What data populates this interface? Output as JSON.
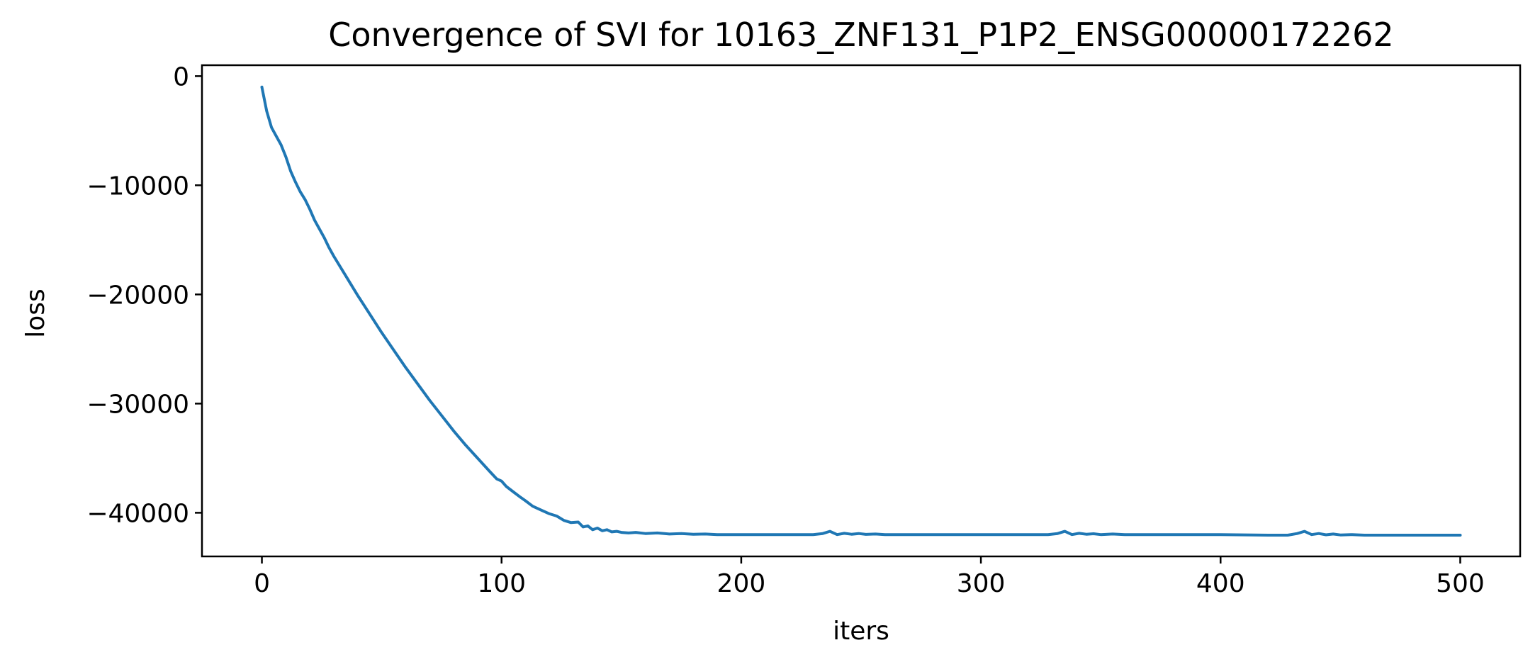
{
  "chart_data": {
    "type": "line",
    "title": "Convergence of SVI for 10163_ZNF131_P1P2_ENSG00000172262",
    "xlabel": "iters",
    "ylabel": "loss",
    "xlim": [
      -25,
      525
    ],
    "ylim": [
      -44000,
      1000
    ],
    "xticks": [
      0,
      100,
      200,
      300,
      400,
      500
    ],
    "xtick_labels": [
      "0",
      "100",
      "200",
      "300",
      "400",
      "500"
    ],
    "yticks": [
      0,
      -10000,
      -20000,
      -30000,
      -40000
    ],
    "ytick_labels": [
      "0",
      "−10000",
      "−20000",
      "−30000",
      "−40000"
    ],
    "grid": false,
    "legend": "none",
    "series": [
      {
        "color": "#1f77b4",
        "x": [
          0,
          2,
          4,
          6,
          8,
          10,
          12,
          14,
          16,
          18,
          20,
          22,
          24,
          26,
          28,
          30,
          35,
          40,
          45,
          50,
          55,
          60,
          65,
          70,
          75,
          80,
          85,
          90,
          95,
          98,
          100,
          102,
          105,
          108,
          110,
          113,
          116,
          120,
          123,
          126,
          129,
          132,
          134,
          136,
          138,
          140,
          142,
          144,
          146,
          148,
          150,
          153,
          156,
          160,
          165,
          170,
          175,
          180,
          185,
          190,
          200,
          210,
          220,
          230,
          234,
          237,
          240,
          243,
          246,
          249,
          252,
          256,
          260,
          270,
          280,
          300,
          320,
          328,
          332,
          335,
          338,
          341,
          344,
          347,
          350,
          355,
          360,
          380,
          400,
          420,
          428,
          432,
          435,
          438,
          441,
          444,
          447,
          450,
          455,
          460,
          480,
          500
        ],
        "y": [
          -1000,
          -3200,
          -4700,
          -5500,
          -6300,
          -7400,
          -8700,
          -9700,
          -10600,
          -11300,
          -12200,
          -13200,
          -14000,
          -14800,
          -15700,
          -16500,
          -18300,
          -20100,
          -21800,
          -23500,
          -25100,
          -26700,
          -28200,
          -29700,
          -31100,
          -32500,
          -33800,
          -35000,
          -36200,
          -36900,
          -37100,
          -37600,
          -38100,
          -38600,
          -38900,
          -39400,
          -39700,
          -40100,
          -40300,
          -40700,
          -40900,
          -40850,
          -41300,
          -41200,
          -41550,
          -41400,
          -41650,
          -41550,
          -41750,
          -41700,
          -41800,
          -41850,
          -41800,
          -41900,
          -41850,
          -41950,
          -41900,
          -41970,
          -41950,
          -42000,
          -42000,
          -42000,
          -42000,
          -42000,
          -41900,
          -41700,
          -42000,
          -41880,
          -41970,
          -41900,
          -41980,
          -41950,
          -42000,
          -42000,
          -42000,
          -42000,
          -42000,
          -42000,
          -41900,
          -41700,
          -42000,
          -41880,
          -41970,
          -41920,
          -42000,
          -41950,
          -42000,
          -42000,
          -42000,
          -42050,
          -42050,
          -41900,
          -41700,
          -42000,
          -41900,
          -42020,
          -41950,
          -42030,
          -42000,
          -42050,
          -42050,
          -42050
        ]
      }
    ]
  }
}
